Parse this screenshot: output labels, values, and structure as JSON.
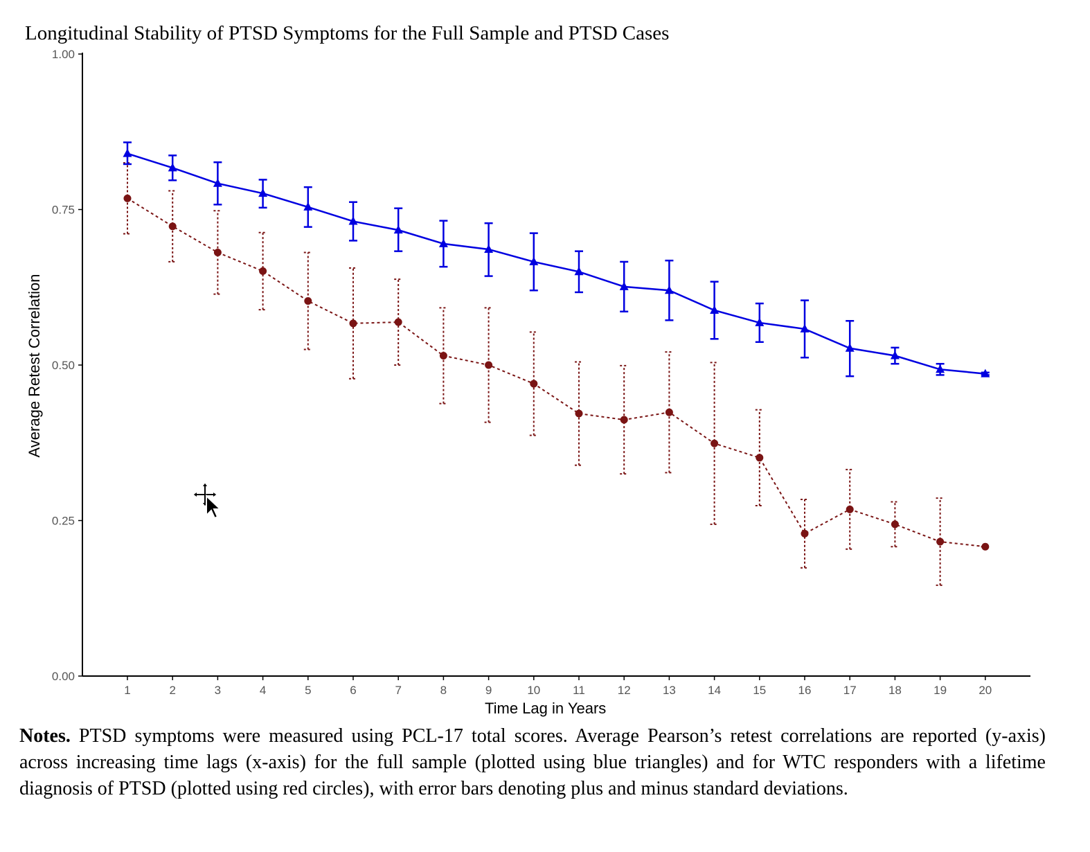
{
  "chart_data": {
    "type": "line",
    "title": "Longitudinal Stability of PTSD Symptoms for the Full Sample and PTSD Cases",
    "xlabel": "Time Lag in Years",
    "ylabel": "Average Retest Correlation",
    "x": [
      1,
      2,
      3,
      4,
      5,
      6,
      7,
      8,
      9,
      10,
      11,
      12,
      13,
      14,
      15,
      16,
      17,
      18,
      19,
      20
    ],
    "ylim": [
      0,
      1
    ],
    "yticks": [
      "0.00",
      "0.25",
      "0.50",
      "0.75",
      "1.00"
    ],
    "ytick_values": [
      0,
      0.25,
      0.5,
      0.75,
      1.0
    ],
    "grid": false,
    "series": [
      {
        "color": "#0000e0",
        "marker": "triangle",
        "line_style": "solid",
        "values": [
          0.84,
          0.817,
          0.792,
          0.776,
          0.754,
          0.731,
          0.717,
          0.695,
          0.686,
          0.666,
          0.65,
          0.626,
          0.62,
          0.588,
          0.568,
          0.558,
          0.527,
          0.515,
          0.493,
          0.486
        ],
        "err_low": [
          0.823,
          0.797,
          0.758,
          0.753,
          0.722,
          0.7,
          0.683,
          0.658,
          0.643,
          0.62,
          0.617,
          0.586,
          0.572,
          0.542,
          0.537,
          0.512,
          0.482,
          0.502,
          0.484,
          0.484
        ],
        "err_high": [
          0.858,
          0.837,
          0.826,
          0.798,
          0.786,
          0.762,
          0.752,
          0.732,
          0.728,
          0.712,
          0.683,
          0.666,
          0.668,
          0.634,
          0.599,
          0.604,
          0.571,
          0.528,
          0.502,
          0.488
        ]
      },
      {
        "color": "#7a1414",
        "marker": "circle",
        "line_style": "dotted",
        "values": [
          0.768,
          0.723,
          0.681,
          0.651,
          0.603,
          0.567,
          0.569,
          0.515,
          0.5,
          0.47,
          0.422,
          0.412,
          0.424,
          0.374,
          0.351,
          0.229,
          0.268,
          0.244,
          0.216,
          0.208
        ],
        "err_low": [
          0.711,
          0.666,
          0.614,
          0.589,
          0.525,
          0.478,
          0.5,
          0.438,
          0.408,
          0.387,
          0.339,
          0.325,
          0.327,
          0.244,
          0.274,
          0.174,
          0.204,
          0.208,
          0.146,
          0.208
        ],
        "err_high": [
          0.825,
          0.78,
          0.748,
          0.713,
          0.681,
          0.656,
          0.638,
          0.592,
          0.592,
          0.553,
          0.505,
          0.499,
          0.521,
          0.504,
          0.428,
          0.284,
          0.332,
          0.28,
          0.286,
          0.208
        ]
      }
    ]
  },
  "notes": {
    "lead": "Notes.",
    "body": " PTSD symptoms were measured using PCL-17 total scores. Average Pearson’s retest correlations are reported (y-axis) across increasing time lags (x-axis) for the full sample (plotted using blue triangles) and for WTC responders with a lifetime diagnosis of PTSD (plotted using red circles), with error bars denoting plus and minus standard deviations."
  },
  "cursor_icon": "move-cursor-icon"
}
